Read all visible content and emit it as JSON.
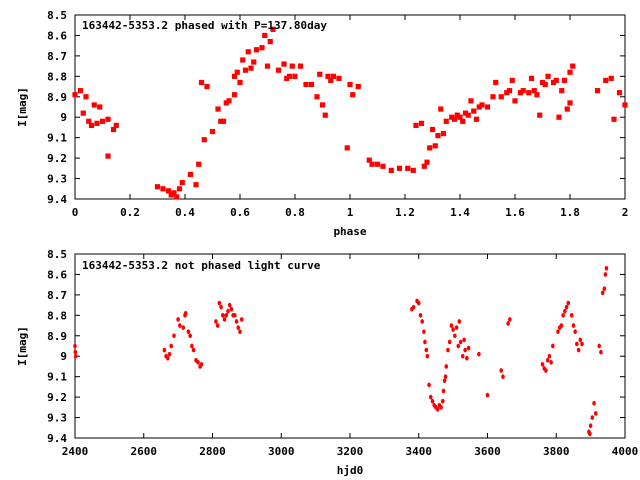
{
  "chart_data": [
    {
      "type": "scatter",
      "title": "163442-5353.2 phased with P=137.80day",
      "xlabel": "phase",
      "ylabel": "I[mag]",
      "xlim": [
        0,
        2
      ],
      "ylim": [
        9.4,
        8.5
      ],
      "y_inverted": true,
      "grid": false,
      "legend": "none",
      "point_color": "#ff0000",
      "x_ticks": [
        0,
        0.2,
        0.4,
        0.6,
        0.8,
        1,
        1.2,
        1.4,
        1.6,
        1.8,
        2
      ],
      "x_tick_labels": [
        "0",
        "0.2",
        "0.4",
        "0.6",
        "0.8",
        "1",
        "1.2",
        "1.4",
        "1.6",
        "1.8",
        "2"
      ],
      "y_ticks": [
        8.5,
        8.6,
        8.7,
        8.8,
        8.9,
        9,
        9.1,
        9.2,
        9.3,
        9.4
      ],
      "y_tick_labels": [
        "8.5",
        "8.6",
        "8.7",
        "8.8",
        "8.9",
        "9",
        "9.1",
        "9.2",
        "9.3",
        "9.4"
      ],
      "points": [
        [
          0.0,
          8.89
        ],
        [
          0.02,
          8.87
        ],
        [
          0.03,
          8.98
        ],
        [
          0.04,
          8.9
        ],
        [
          0.05,
          9.02
        ],
        [
          0.06,
          9.04
        ],
        [
          0.07,
          8.94
        ],
        [
          0.08,
          9.03
        ],
        [
          0.09,
          8.95
        ],
        [
          0.1,
          9.02
        ],
        [
          0.12,
          9.01
        ],
        [
          0.12,
          9.19
        ],
        [
          0.14,
          9.06
        ],
        [
          0.15,
          9.04
        ],
        [
          0.3,
          9.34
        ],
        [
          0.32,
          9.35
        ],
        [
          0.34,
          9.36
        ],
        [
          0.35,
          9.38
        ],
        [
          0.36,
          9.37
        ],
        [
          0.37,
          9.39
        ],
        [
          0.38,
          9.35
        ],
        [
          0.39,
          9.32
        ],
        [
          0.42,
          9.28
        ],
        [
          0.44,
          9.33
        ],
        [
          0.45,
          9.23
        ],
        [
          0.46,
          8.83
        ],
        [
          0.48,
          8.85
        ],
        [
          0.47,
          9.11
        ],
        [
          0.5,
          9.07
        ],
        [
          0.52,
          8.96
        ],
        [
          0.53,
          9.02
        ],
        [
          0.54,
          9.02
        ],
        [
          0.55,
          8.93
        ],
        [
          0.56,
          8.92
        ],
        [
          0.58,
          8.89
        ],
        [
          0.58,
          8.8
        ],
        [
          0.59,
          8.78
        ],
        [
          0.6,
          8.83
        ],
        [
          0.61,
          8.72
        ],
        [
          0.62,
          8.77
        ],
        [
          0.63,
          8.68
        ],
        [
          0.64,
          8.76
        ],
        [
          0.65,
          8.73
        ],
        [
          0.66,
          8.67
        ],
        [
          0.68,
          8.66
        ],
        [
          0.69,
          8.6
        ],
        [
          0.7,
          8.75
        ],
        [
          0.71,
          8.63
        ],
        [
          0.72,
          8.57
        ],
        [
          0.74,
          8.77
        ],
        [
          0.76,
          8.74
        ],
        [
          0.77,
          8.81
        ],
        [
          0.78,
          8.8
        ],
        [
          0.79,
          8.75
        ],
        [
          0.8,
          8.8
        ],
        [
          0.82,
          8.75
        ],
        [
          0.84,
          8.84
        ],
        [
          0.86,
          8.84
        ],
        [
          0.88,
          8.9
        ],
        [
          0.89,
          8.79
        ],
        [
          0.9,
          8.94
        ],
        [
          0.91,
          8.99
        ],
        [
          0.92,
          8.8
        ],
        [
          0.93,
          8.82
        ],
        [
          0.94,
          8.8
        ],
        [
          0.96,
          8.81
        ],
        [
          0.99,
          9.15
        ],
        [
          1.0,
          8.84
        ],
        [
          1.01,
          8.89
        ],
        [
          1.03,
          8.85
        ],
        [
          1.07,
          9.21
        ],
        [
          1.08,
          9.23
        ],
        [
          1.1,
          9.23
        ],
        [
          1.12,
          9.24
        ],
        [
          1.15,
          9.26
        ],
        [
          1.18,
          9.25
        ],
        [
          1.21,
          9.25
        ],
        [
          1.23,
          9.26
        ],
        [
          1.24,
          9.04
        ],
        [
          1.26,
          9.03
        ],
        [
          1.27,
          9.24
        ],
        [
          1.28,
          9.22
        ],
        [
          1.29,
          9.15
        ],
        [
          1.3,
          9.06
        ],
        [
          1.31,
          9.14
        ],
        [
          1.32,
          9.09
        ],
        [
          1.33,
          8.96
        ],
        [
          1.34,
          9.08
        ],
        [
          1.35,
          9.02
        ],
        [
          1.37,
          9.0
        ],
        [
          1.38,
          9.01
        ],
        [
          1.39,
          8.99
        ],
        [
          1.4,
          9.0
        ],
        [
          1.41,
          9.02
        ],
        [
          1.42,
          8.98
        ],
        [
          1.43,
          8.99
        ],
        [
          1.44,
          8.92
        ],
        [
          1.45,
          8.97
        ],
        [
          1.46,
          9.01
        ],
        [
          1.47,
          8.95
        ],
        [
          1.48,
          8.94
        ],
        [
          1.5,
          8.95
        ],
        [
          1.52,
          8.9
        ],
        [
          1.53,
          8.83
        ],
        [
          1.55,
          8.9
        ],
        [
          1.57,
          8.88
        ],
        [
          1.58,
          8.87
        ],
        [
          1.59,
          8.82
        ],
        [
          1.6,
          8.92
        ],
        [
          1.62,
          8.88
        ],
        [
          1.63,
          8.87
        ],
        [
          1.65,
          8.88
        ],
        [
          1.66,
          8.81
        ],
        [
          1.67,
          8.87
        ],
        [
          1.68,
          8.89
        ],
        [
          1.69,
          8.99
        ],
        [
          1.7,
          8.83
        ],
        [
          1.71,
          8.84
        ],
        [
          1.72,
          8.8
        ],
        [
          1.74,
          8.83
        ],
        [
          1.75,
          8.82
        ],
        [
          1.76,
          9.0
        ],
        [
          1.77,
          8.87
        ],
        [
          1.78,
          8.82
        ],
        [
          1.79,
          8.96
        ],
        [
          1.8,
          8.78
        ],
        [
          1.81,
          8.75
        ],
        [
          1.8,
          8.93
        ],
        [
          1.9,
          8.87
        ],
        [
          1.93,
          8.82
        ],
        [
          1.95,
          8.81
        ],
        [
          1.96,
          9.01
        ],
        [
          1.98,
          8.88
        ],
        [
          2.0,
          8.94
        ]
      ]
    },
    {
      "type": "scatter",
      "title": "163442-5353.2 not phased light curve",
      "xlabel": "hjd0",
      "ylabel": "I[mag]",
      "xlim": [
        2400,
        4000
      ],
      "ylim": [
        9.4,
        8.5
      ],
      "y_inverted": true,
      "grid": false,
      "legend": "none",
      "point_color": "#ff0000",
      "x_ticks": [
        2400,
        2600,
        2800,
        3000,
        3200,
        3400,
        3600,
        3800,
        4000
      ],
      "x_tick_labels": [
        "2400",
        "2600",
        "2800",
        "3000",
        "3200",
        "3400",
        "3600",
        "3800",
        "4000"
      ],
      "y_ticks": [
        8.5,
        8.6,
        8.7,
        8.8,
        8.9,
        9,
        9.1,
        9.2,
        9.3,
        9.4
      ],
      "y_tick_labels": [
        "8.5",
        "8.6",
        "8.7",
        "8.8",
        "8.9",
        "9",
        "9.1",
        "9.2",
        "9.3",
        "9.4"
      ],
      "points": [
        [
          2400,
          8.95
        ],
        [
          2401,
          8.98
        ],
        [
          2402,
          9.0
        ],
        [
          2660,
          8.97
        ],
        [
          2665,
          9.0
        ],
        [
          2670,
          9.01
        ],
        [
          2675,
          8.99
        ],
        [
          2680,
          8.95
        ],
        [
          2688,
          8.9
        ],
        [
          2700,
          8.82
        ],
        [
          2705,
          8.85
        ],
        [
          2715,
          8.86
        ],
        [
          2720,
          8.8
        ],
        [
          2722,
          8.79
        ],
        [
          2730,
          8.88
        ],
        [
          2735,
          8.9
        ],
        [
          2740,
          8.95
        ],
        [
          2745,
          8.97
        ],
        [
          2752,
          9.02
        ],
        [
          2758,
          9.03
        ],
        [
          2764,
          9.05
        ],
        [
          2768,
          9.04
        ],
        [
          2810,
          8.83
        ],
        [
          2815,
          8.85
        ],
        [
          2820,
          8.74
        ],
        [
          2825,
          8.76
        ],
        [
          2830,
          8.8
        ],
        [
          2835,
          8.82
        ],
        [
          2840,
          8.8
        ],
        [
          2845,
          8.78
        ],
        [
          2850,
          8.75
        ],
        [
          2855,
          8.77
        ],
        [
          2860,
          8.8
        ],
        [
          2865,
          8.8
        ],
        [
          2870,
          8.83
        ],
        [
          2875,
          8.86
        ],
        [
          2880,
          8.88
        ],
        [
          2885,
          8.82
        ],
        [
          3380,
          8.77
        ],
        [
          3385,
          8.76
        ],
        [
          3395,
          8.73
        ],
        [
          3400,
          8.74
        ],
        [
          3405,
          8.8
        ],
        [
          3410,
          8.83
        ],
        [
          3415,
          8.88
        ],
        [
          3418,
          8.93
        ],
        [
          3422,
          8.97
        ],
        [
          3425,
          9.0
        ],
        [
          3430,
          9.14
        ],
        [
          3435,
          9.2
        ],
        [
          3440,
          9.22
        ],
        [
          3445,
          9.24
        ],
        [
          3450,
          9.25
        ],
        [
          3455,
          9.26
        ],
        [
          3460,
          9.24
        ],
        [
          3465,
          9.25
        ],
        [
          3470,
          9.22
        ],
        [
          3472,
          9.17
        ],
        [
          3475,
          9.12
        ],
        [
          3478,
          9.1
        ],
        [
          3480,
          9.05
        ],
        [
          3485,
          8.97
        ],
        [
          3490,
          8.93
        ],
        [
          3495,
          8.85
        ],
        [
          3500,
          8.87
        ],
        [
          3505,
          8.9
        ],
        [
          3510,
          8.86
        ],
        [
          3515,
          8.95
        ],
        [
          3518,
          8.83
        ],
        [
          3522,
          8.93
        ],
        [
          3528,
          9.0
        ],
        [
          3532,
          8.92
        ],
        [
          3535,
          8.97
        ],
        [
          3540,
          9.01
        ],
        [
          3545,
          8.96
        ],
        [
          3575,
          8.99
        ],
        [
          3600,
          9.19
        ],
        [
          3640,
          9.07
        ],
        [
          3645,
          9.1
        ],
        [
          3660,
          8.84
        ],
        [
          3665,
          8.82
        ],
        [
          3760,
          9.04
        ],
        [
          3765,
          9.06
        ],
        [
          3770,
          9.07
        ],
        [
          3775,
          9.02
        ],
        [
          3780,
          9.0
        ],
        [
          3785,
          9.03
        ],
        [
          3790,
          8.95
        ],
        [
          3805,
          8.88
        ],
        [
          3810,
          8.86
        ],
        [
          3815,
          8.85
        ],
        [
          3820,
          8.8
        ],
        [
          3825,
          8.78
        ],
        [
          3830,
          8.76
        ],
        [
          3835,
          8.74
        ],
        [
          3845,
          8.8
        ],
        [
          3850,
          8.85
        ],
        [
          3855,
          8.88
        ],
        [
          3860,
          8.94
        ],
        [
          3865,
          8.97
        ],
        [
          3870,
          8.92
        ],
        [
          3875,
          8.94
        ],
        [
          3895,
          9.37
        ],
        [
          3898,
          9.38
        ],
        [
          3900,
          9.34
        ],
        [
          3905,
          9.3
        ],
        [
          3910,
          9.23
        ],
        [
          3915,
          9.28
        ],
        [
          3925,
          8.95
        ],
        [
          3930,
          8.98
        ],
        [
          3935,
          8.69
        ],
        [
          3940,
          8.67
        ],
        [
          3943,
          8.6
        ],
        [
          3946,
          8.57
        ]
      ]
    }
  ]
}
